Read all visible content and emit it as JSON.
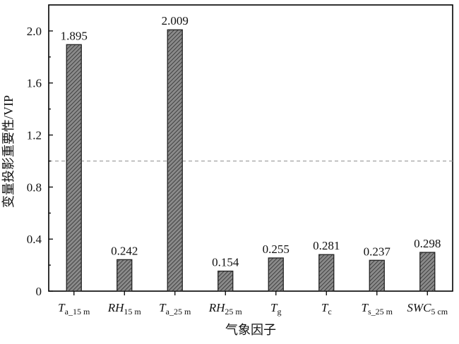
{
  "chart_data": {
    "type": "bar",
    "title": "",
    "xlabel": "气象因子",
    "ylabel": "变量投影重要性/VIP",
    "ylim": [
      0,
      2.2
    ],
    "yticks": [
      0,
      0.4,
      0.8,
      1.2,
      1.6,
      2.0
    ],
    "ytick_labels": [
      "0",
      "0.4",
      "0.8",
      "1.2",
      "1.6",
      "2.0"
    ],
    "grid": false,
    "legend": "none",
    "reference_line": {
      "value": 1.0,
      "style": "dashed",
      "color": "#9a9a9a"
    },
    "bar_fill": "#5a5a5a",
    "bar_hatch": "diagonal",
    "categories": [
      {
        "base": "T",
        "sub": "a_15 m",
        "italic": true
      },
      {
        "base": "RH",
        "sub": "15 m",
        "italic": true
      },
      {
        "base": "T",
        "sub": "a_25 m",
        "italic": true
      },
      {
        "base": "RH",
        "sub": "25 m",
        "italic": true
      },
      {
        "base": "T",
        "sub": "g",
        "italic": true
      },
      {
        "base": "T",
        "sub": "c",
        "italic": true
      },
      {
        "base": "T",
        "sub": "s_25 m",
        "italic": true
      },
      {
        "base": "SWC",
        "sub": "5 cm",
        "italic": true
      }
    ],
    "values": [
      1.895,
      0.242,
      2.009,
      0.154,
      0.255,
      0.281,
      0.237,
      0.298
    ],
    "value_labels": [
      "1.895",
      "0.242",
      "2.009",
      "0.154",
      "0.255",
      "0.281",
      "0.237",
      "0.298"
    ]
  }
}
